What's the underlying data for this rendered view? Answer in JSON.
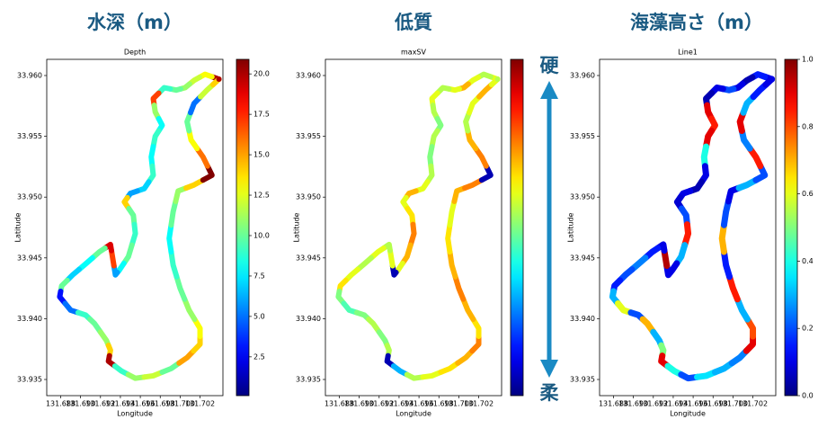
{
  "chart_data": [
    {
      "type": "scatter",
      "suptitle": "水深（m）",
      "title": "Depth",
      "xlabel": "Longitude",
      "ylabel": "Latitude",
      "cmap": "jet",
      "x": [
        131.7039,
        131.7025,
        131.7014,
        131.7005,
        131.6996,
        131.6984,
        131.6973,
        131.6975,
        131.6982,
        131.6975,
        131.6971,
        131.6973,
        131.6964,
        131.695,
        131.6944,
        131.6953,
        131.6955,
        131.6948,
        131.6939,
        131.6935,
        131.6932,
        131.693,
        131.6919,
        131.6905,
        131.6892,
        131.6881,
        131.6879,
        131.689,
        131.6905,
        131.6914,
        131.6926,
        131.693,
        131.6928,
        131.6941,
        131.6955,
        131.6973,
        131.6991,
        131.7007,
        131.702,
        131.702,
        131.7009,
        131.7,
        131.6993,
        131.6989,
        131.6993,
        131.6998,
        131.7014,
        131.7032,
        131.7023,
        131.7011,
        131.7007,
        131.7014,
        131.7027,
        131.7039,
        131.7039
      ],
      "y": [
        33.9597,
        33.9601,
        33.9596,
        33.959,
        33.9588,
        33.959,
        33.9581,
        33.957,
        33.9559,
        33.955,
        33.9533,
        33.9518,
        33.9507,
        33.9503,
        33.9496,
        33.9485,
        33.947,
        33.9451,
        33.944,
        33.9436,
        33.9451,
        33.9461,
        33.9455,
        33.9445,
        33.9436,
        33.9427,
        33.9418,
        33.9407,
        33.9403,
        33.9396,
        33.9382,
        33.9374,
        33.9365,
        33.9357,
        33.9351,
        33.9353,
        33.9359,
        33.9368,
        33.9379,
        33.9392,
        33.9407,
        33.9425,
        33.9444,
        33.9466,
        33.9488,
        33.9505,
        33.951,
        33.9518,
        33.9533,
        33.9547,
        33.9562,
        33.9577,
        33.9588,
        33.9597,
        33.9597
      ],
      "values": [
        20,
        13,
        12,
        11,
        10,
        9,
        17,
        11,
        8,
        9,
        8,
        9,
        7,
        6,
        14,
        10,
        9,
        10,
        8,
        6,
        17,
        19,
        10,
        8,
        7,
        10,
        3,
        5,
        9,
        10,
        11,
        14,
        20,
        9,
        11,
        12,
        10,
        15,
        14,
        13,
        11,
        10,
        9,
        8,
        10,
        11,
        14,
        21,
        16,
        13,
        10,
        5,
        12,
        14,
        20
      ],
      "clim": [
        0.1,
        20.9
      ],
      "colorbar_ticks": [
        {
          "value": 2.5,
          "label": "2.5"
        },
        {
          "value": 5,
          "label": "5.0"
        },
        {
          "value": 7.5,
          "label": "7.5"
        },
        {
          "value": 10,
          "label": "10.0"
        },
        {
          "value": 12.5,
          "label": "12.5"
        },
        {
          "value": 15,
          "label": "15.0"
        },
        {
          "value": 17.5,
          "label": "17.5"
        },
        {
          "value": 20,
          "label": "20.0"
        }
      ],
      "xlim": [
        131.6866,
        131.7043
      ],
      "ylim": [
        33.93367,
        33.96133
      ],
      "xticks": [
        131.688,
        {
          "value": 131.69,
          "label": "131.690"
        },
        131.692,
        131.694,
        131.696,
        131.698,
        {
          "value": 131.7,
          "label": "131.700"
        },
        131.702
      ],
      "yticks": [
        33.935,
        {
          "value": 33.94,
          "label": "33.940"
        },
        33.945,
        {
          "value": 33.95,
          "label": "33.950"
        },
        33.955,
        {
          "value": 33.96,
          "label": "33.960"
        }
      ]
    },
    {
      "type": "scatter",
      "suptitle": "低質",
      "title": "maxSV",
      "xlabel": "Longitude",
      "ylabel": "Latitude",
      "cmap": "jet",
      "annotations": [
        "硬",
        "柔"
      ],
      "x": [
        131.7039,
        131.7025,
        131.7014,
        131.7005,
        131.6996,
        131.6984,
        131.6973,
        131.6975,
        131.6982,
        131.6975,
        131.6971,
        131.6973,
        131.6964,
        131.695,
        131.6944,
        131.6953,
        131.6955,
        131.6948,
        131.6939,
        131.6935,
        131.6932,
        131.693,
        131.6919,
        131.6905,
        131.6892,
        131.6881,
        131.6879,
        131.689,
        131.6905,
        131.6914,
        131.6926,
        131.693,
        131.6928,
        131.6941,
        131.6955,
        131.6973,
        131.6991,
        131.7007,
        131.702,
        131.702,
        131.7009,
        131.7,
        131.6993,
        131.6989,
        131.6993,
        131.6998,
        131.7014,
        131.7032,
        131.7023,
        131.7011,
        131.7007,
        131.7014,
        131.7027,
        131.7039,
        131.7039
      ],
      "y": [
        33.9597,
        33.9601,
        33.9596,
        33.959,
        33.9588,
        33.959,
        33.9581,
        33.957,
        33.9559,
        33.955,
        33.9533,
        33.9518,
        33.9507,
        33.9503,
        33.9496,
        33.9485,
        33.947,
        33.9451,
        33.944,
        33.9436,
        33.9451,
        33.9461,
        33.9455,
        33.9445,
        33.9436,
        33.9427,
        33.9418,
        33.9407,
        33.9403,
        33.9396,
        33.9382,
        33.9374,
        33.9365,
        33.9357,
        33.9351,
        33.9353,
        33.9359,
        33.9368,
        33.9379,
        33.9392,
        33.9407,
        33.9425,
        33.9444,
        33.9466,
        33.9488,
        33.9505,
        33.951,
        33.9518,
        33.9533,
        33.9547,
        33.9562,
        33.9577,
        33.9588,
        33.9597,
        33.9597
      ],
      "values": [
        0.6,
        0.55,
        0.6,
        0.7,
        0.6,
        0.55,
        0.6,
        0.55,
        0.5,
        0.55,
        0.5,
        0.55,
        0.6,
        0.7,
        0.6,
        0.65,
        0.75,
        0.7,
        0.6,
        0.05,
        0.6,
        0.55,
        0.6,
        0.55,
        0.6,
        0.65,
        0.5,
        0.45,
        0.5,
        0.55,
        0.5,
        0.55,
        0.05,
        0.3,
        0.55,
        0.6,
        0.65,
        0.7,
        0.75,
        0.65,
        0.7,
        0.75,
        0.7,
        0.65,
        0.6,
        0.7,
        0.75,
        0.05,
        0.75,
        0.7,
        0.55,
        0.6,
        0.7,
        0.6,
        0.55
      ],
      "clim": [
        0,
        1
      ],
      "xlim": [
        131.6866,
        131.7043
      ],
      "ylim": [
        33.93367,
        33.96133
      ],
      "xticks": [
        131.688,
        {
          "value": 131.69,
          "label": "131.690"
        },
        131.692,
        131.694,
        131.696,
        131.698,
        {
          "value": 131.7,
          "label": "131.700"
        },
        131.702
      ],
      "yticks": [
        33.935,
        {
          "value": 33.94,
          "label": "33.940"
        },
        33.945,
        {
          "value": 33.95,
          "label": "33.950"
        },
        33.955,
        {
          "value": 33.96,
          "label": "33.960"
        }
      ]
    },
    {
      "type": "scatter",
      "suptitle": "海藻高さ（m）",
      "title": "Line1",
      "xlabel": "Longitude",
      "ylabel": "Latitude",
      "cmap": "jet",
      "x": [
        131.7039,
        131.7025,
        131.7014,
        131.7005,
        131.6996,
        131.6984,
        131.6973,
        131.6975,
        131.6982,
        131.6975,
        131.6971,
        131.6973,
        131.6964,
        131.695,
        131.6944,
        131.6953,
        131.6955,
        131.6948,
        131.6939,
        131.6935,
        131.6932,
        131.693,
        131.6919,
        131.6905,
        131.6892,
        131.6881,
        131.6879,
        131.689,
        131.6905,
        131.6914,
        131.6926,
        131.693,
        131.6928,
        131.6941,
        131.6955,
        131.6973,
        131.6991,
        131.7007,
        131.702,
        131.702,
        131.7009,
        131.7,
        131.6993,
        131.6989,
        131.6993,
        131.6998,
        131.7014,
        131.7032,
        131.7023,
        131.7011,
        131.7007,
        131.7014,
        131.7027,
        131.7039,
        131.7039
      ],
      "y": [
        33.9597,
        33.9601,
        33.9596,
        33.959,
        33.9588,
        33.959,
        33.9581,
        33.957,
        33.9559,
        33.955,
        33.9533,
        33.9518,
        33.9507,
        33.9503,
        33.9496,
        33.9485,
        33.947,
        33.9451,
        33.944,
        33.9436,
        33.9451,
        33.9461,
        33.9455,
        33.9445,
        33.9436,
        33.9427,
        33.9418,
        33.9407,
        33.9403,
        33.9396,
        33.9382,
        33.9374,
        33.9365,
        33.9357,
        33.9351,
        33.9353,
        33.9359,
        33.9368,
        33.9379,
        33.9392,
        33.9407,
        33.9425,
        33.9444,
        33.9466,
        33.9488,
        33.9505,
        33.951,
        33.9518,
        33.9533,
        33.9547,
        33.9562,
        33.9577,
        33.9588,
        33.9597,
        33.9597
      ],
      "values": [
        0.1,
        0.15,
        0.05,
        0.1,
        0.2,
        0.1,
        0.05,
        0.9,
        0.85,
        0.9,
        0.4,
        0.1,
        0.05,
        0.1,
        0.08,
        0.2,
        0.85,
        0.3,
        0.1,
        0.1,
        0.95,
        0.1,
        0.15,
        0.25,
        0.2,
        0.15,
        0.3,
        0.6,
        0.2,
        0.7,
        0.3,
        0.5,
        0.9,
        0.4,
        0.2,
        0.35,
        0.3,
        0.25,
        0.9,
        0.8,
        0.3,
        0.85,
        0.15,
        0.7,
        0.2,
        0.1,
        0.3,
        0.2,
        0.85,
        0.25,
        0.9,
        0.3,
        0.15,
        0.1,
        0.1
      ],
      "clim": [
        0,
        1
      ],
      "colorbar_ticks": [
        {
          "value": 0,
          "label": "0.0"
        },
        0.2,
        0.4,
        0.6,
        0.8,
        {
          "value": 1,
          "label": "1.0"
        }
      ],
      "xlim": [
        131.6866,
        131.7043
      ],
      "ylim": [
        33.93367,
        33.96133
      ],
      "xticks": [
        131.688,
        {
          "value": 131.69,
          "label": "131.690"
        },
        131.692,
        131.694,
        131.696,
        131.698,
        {
          "value": 131.7,
          "label": "131.700"
        },
        131.702
      ],
      "yticks": [
        33.935,
        {
          "value": 33.94,
          "label": "33.940"
        },
        33.945,
        {
          "value": 33.95,
          "label": "33.950"
        },
        33.955,
        {
          "value": 33.96,
          "label": "33.960"
        }
      ]
    }
  ]
}
